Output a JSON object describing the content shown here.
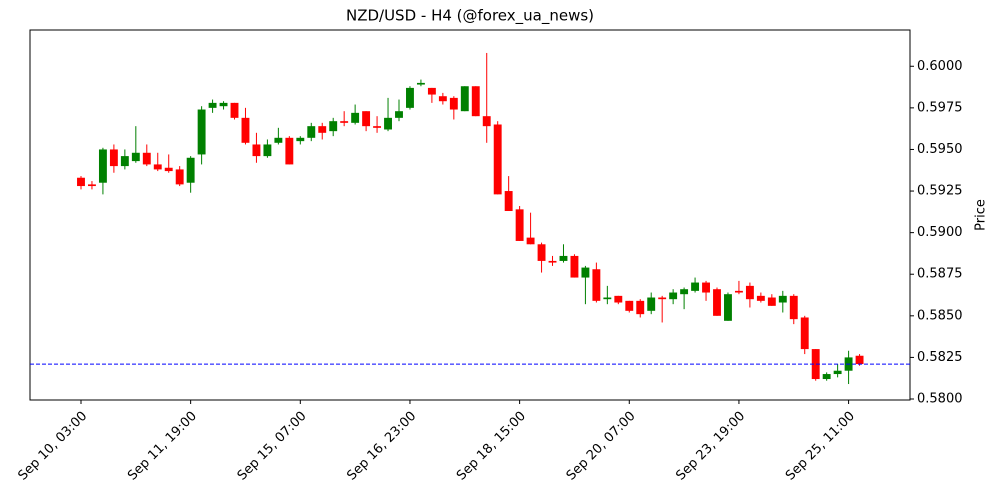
{
  "chart_data": {
    "type": "candlestick",
    "title": "NZD/USD - H4 (@forex_ua_news)",
    "y_label": "Price",
    "y_axis_side": "right",
    "categories": [
      "Sep 10, 03:00",
      null,
      null,
      null,
      null,
      null,
      null,
      null,
      null,
      null,
      "Sep 11, 19:00",
      null,
      null,
      null,
      null,
      null,
      null,
      null,
      null,
      null,
      "Sep 15, 07:00",
      null,
      null,
      null,
      null,
      null,
      null,
      null,
      null,
      null,
      "Sep 16, 23:00",
      null,
      null,
      null,
      null,
      null,
      null,
      null,
      null,
      null,
      "Sep 18, 15:00",
      null,
      null,
      null,
      null,
      null,
      null,
      null,
      null,
      null,
      "Sep 20, 07:00",
      null,
      null,
      null,
      null,
      null,
      null,
      null,
      null,
      null,
      "Sep 23, 19:00",
      null,
      null,
      null,
      null,
      null,
      null,
      null,
      null,
      null,
      "Sep 25, 11:00",
      null
    ],
    "open": [
      0.5933,
      0.5929,
      0.593,
      0.595,
      0.594,
      0.5943,
      0.5948,
      0.5941,
      0.5939,
      0.5938,
      0.593,
      0.5947,
      0.5975,
      0.5976,
      0.5978,
      0.5969,
      0.5953,
      0.5946,
      0.5954,
      0.5957,
      0.5955,
      0.5957,
      0.5964,
      0.5961,
      0.5967,
      0.5966,
      0.5973,
      0.5964,
      0.5962,
      0.5969,
      0.5975,
      0.5989,
      0.5987,
      0.5982,
      0.5981,
      0.5973,
      0.5988,
      0.597,
      0.5965,
      0.5925,
      0.5914,
      0.5897,
      0.5893,
      0.5883,
      0.5883,
      0.5886,
      0.5873,
      0.5878,
      0.586,
      0.5862,
      0.5859,
      0.5859,
      0.5853,
      0.5861,
      0.586,
      0.5863,
      0.5865,
      0.587,
      0.5866,
      0.5847,
      0.5865,
      0.5868,
      0.5862,
      0.5861,
      0.5858,
      0.5862,
      0.5849,
      0.583,
      0.5812,
      0.5815,
      0.5817,
      0.5826
    ],
    "high": [
      0.5934,
      0.5931,
      0.5951,
      0.5953,
      0.595,
      0.5964,
      0.5953,
      0.5948,
      0.5947,
      0.594,
      0.5946,
      0.5976,
      0.598,
      0.5979,
      0.5978,
      0.5975,
      0.596,
      0.5956,
      0.5963,
      0.5958,
      0.5958,
      0.5966,
      0.5966,
      0.5969,
      0.5973,
      0.5977,
      0.5973,
      0.597,
      0.5981,
      0.598,
      0.5988,
      0.5992,
      0.5987,
      0.5984,
      0.5982,
      0.5988,
      0.5988,
      0.6008,
      0.5967,
      0.5934,
      0.5916,
      0.5912,
      0.5894,
      0.5886,
      0.5893,
      0.5887,
      0.588,
      0.5882,
      0.5868,
      0.5862,
      0.5859,
      0.586,
      0.5864,
      0.5862,
      0.5866,
      0.5867,
      0.5873,
      0.5871,
      0.5867,
      0.5864,
      0.5871,
      0.587,
      0.5864,
      0.5863,
      0.5865,
      0.5863,
      0.585,
      0.583,
      0.5816,
      0.5821,
      0.5829,
      0.5827
    ],
    "low": [
      0.5926,
      0.5926,
      0.5923,
      0.5936,
      0.5938,
      0.5942,
      0.594,
      0.5937,
      0.5936,
      0.5928,
      0.5924,
      0.5941,
      0.5972,
      0.5974,
      0.5968,
      0.5953,
      0.5942,
      0.5945,
      0.5953,
      0.5941,
      0.5953,
      0.5955,
      0.5956,
      0.5958,
      0.5964,
      0.5965,
      0.5961,
      0.596,
      0.5961,
      0.5967,
      0.5974,
      0.5988,
      0.5978,
      0.5977,
      0.5968,
      0.5973,
      0.597,
      0.5954,
      0.5923,
      0.5913,
      0.5895,
      0.5893,
      0.5876,
      0.588,
      0.5882,
      0.5873,
      0.5857,
      0.5858,
      0.5857,
      0.5857,
      0.5852,
      0.5849,
      0.5851,
      0.5846,
      0.5857,
      0.5854,
      0.5864,
      0.5859,
      0.585,
      0.5847,
      0.5863,
      0.5855,
      0.5858,
      0.5856,
      0.5852,
      0.5845,
      0.5827,
      0.5811,
      0.5811,
      0.5813,
      0.5809,
      0.582
    ],
    "close": [
      0.5928,
      0.5928,
      0.595,
      0.594,
      0.5946,
      0.5948,
      0.5941,
      0.5938,
      0.5937,
      0.5929,
      0.5945,
      0.5974,
      0.5978,
      0.5978,
      0.5969,
      0.5954,
      0.5946,
      0.5953,
      0.5957,
      0.5941,
      0.5957,
      0.5964,
      0.596,
      0.5967,
      0.5966,
      0.5972,
      0.5964,
      0.5963,
      0.5969,
      0.5973,
      0.5987,
      0.599,
      0.5983,
      0.5979,
      0.5974,
      0.5988,
      0.597,
      0.5964,
      0.5923,
      0.5913,
      0.5895,
      0.5893,
      0.5883,
      0.5882,
      0.5886,
      0.5873,
      0.5879,
      0.5859,
      0.5861,
      0.5858,
      0.5853,
      0.5851,
      0.5861,
      0.586,
      0.5864,
      0.5866,
      0.587,
      0.5864,
      0.585,
      0.5863,
      0.5864,
      0.586,
      0.5859,
      0.5856,
      0.5862,
      0.5848,
      0.583,
      0.5812,
      0.5815,
      0.5817,
      0.5825,
      0.5821
    ],
    "up_color": "green",
    "down_color": "red",
    "hline": 0.5821,
    "hline_color": "blue",
    "xlim": [
      -4.65,
      75.6
    ],
    "ylim": [
      0.57994,
      0.60218
    ],
    "yticks": [
      {
        "value": 0.58,
        "label": "0.5800"
      },
      0.5825,
      {
        "value": 0.585,
        "label": "0.5850"
      },
      0.5875,
      {
        "value": 0.59,
        "label": "0.5900"
      },
      0.5925,
      {
        "value": 0.595,
        "label": "0.5950"
      },
      0.5975,
      {
        "value": 0.6,
        "label": "0.6000"
      }
    ],
    "grid": false
  }
}
